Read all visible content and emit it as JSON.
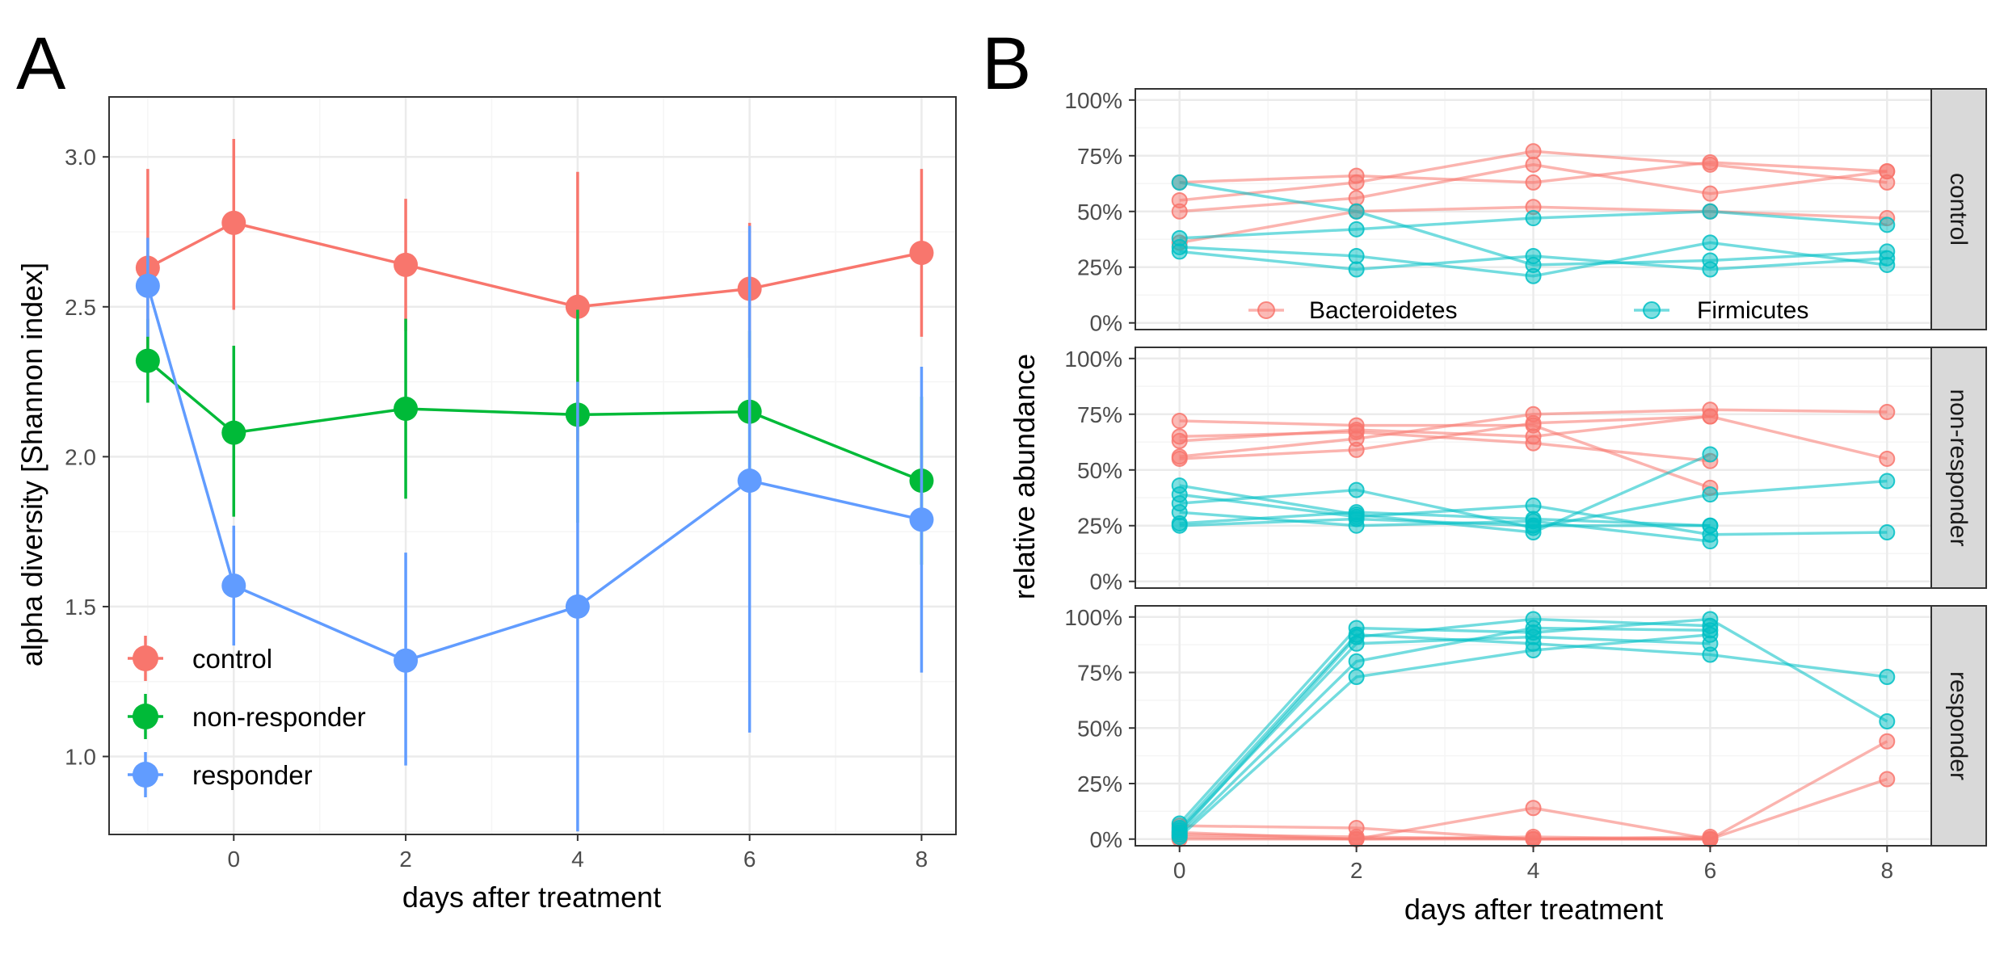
{
  "colors": {
    "control": "#F8766D",
    "non_responder": "#00BA38",
    "responder": "#619CFF",
    "bacteroidetes": "#F8766D",
    "firmicutes": "#00BFC4",
    "grid_major": "#EBEBEB",
    "grid_minor": "#F5F5F5",
    "strip_fill": "#D9D9D9",
    "text": "#000000",
    "tick_text": "#4D4D4D"
  },
  "chart_data": [
    {
      "panel_label": "A",
      "type": "line",
      "xlabel": "days after treatment",
      "ylabel": "alpha diversity [Shannon index]",
      "xlim": [
        -1.45,
        8.4
      ],
      "ylim": [
        0.74,
        3.2
      ],
      "x_ticks": [
        0,
        2,
        4,
        6,
        8
      ],
      "x_tick_labels": [
        "0",
        "2",
        "4",
        "6",
        "8"
      ],
      "y_ticks": [
        1.0,
        1.5,
        2.0,
        2.5,
        3.0
      ],
      "y_tick_labels": [
        "1.0",
        "1.5",
        "2.0",
        "2.5",
        "3.0"
      ],
      "grid": true,
      "legend_position": "bottom-left",
      "x": [
        -1,
        0,
        2,
        4,
        6,
        8
      ],
      "series": [
        {
          "key": "control",
          "name": "control",
          "values": [
            2.63,
            2.78,
            2.64,
            2.5,
            2.56,
            2.68
          ],
          "lower": [
            2.28,
            2.49,
            2.42,
            2.05,
            2.33,
            2.4
          ],
          "upper": [
            2.96,
            3.06,
            2.86,
            2.95,
            2.78,
            2.96
          ]
        },
        {
          "key": "non_responder",
          "name": "non-responder",
          "values": [
            2.32,
            2.08,
            2.16,
            2.14,
            2.15,
            1.92
          ],
          "lower": [
            2.18,
            1.8,
            1.86,
            1.78,
            1.88,
            1.64
          ],
          "upper": [
            2.46,
            2.37,
            2.46,
            2.49,
            2.42,
            2.2
          ]
        },
        {
          "key": "responder",
          "name": "responder",
          "values": [
            2.57,
            1.57,
            1.32,
            1.5,
            1.92,
            1.79
          ],
          "lower": [
            2.4,
            1.37,
            0.97,
            0.75,
            1.08,
            1.28
          ],
          "upper": [
            2.73,
            1.77,
            1.68,
            2.25,
            2.77,
            2.3
          ]
        }
      ]
    },
    {
      "panel_label": "B",
      "type": "line",
      "xlabel": "days after treatment",
      "ylabel": "relative abundance",
      "xlim": [
        -0.5,
        8.5
      ],
      "ylim": [
        -0.03,
        1.05
      ],
      "x_ticks": [
        0,
        2,
        4,
        6,
        8
      ],
      "x_tick_labels": [
        "0",
        "2",
        "4",
        "6",
        "8"
      ],
      "y_ticks": [
        0,
        0.25,
        0.5,
        0.75,
        1.0
      ],
      "y_tick_labels": [
        "0%",
        "25%",
        "50%",
        "75%",
        "100%"
      ],
      "grid": true,
      "legend_position": "inside-bottom of top facet",
      "legend": [
        {
          "key": "bacteroidetes",
          "label": "Bacteroidetes"
        },
        {
          "key": "firmicutes",
          "label": "Firmicutes"
        }
      ],
      "facets": [
        {
          "strip": "control",
          "lines": [
            {
              "taxon": "bacteroidetes",
              "x": [
                0,
                2,
                4,
                6,
                8
              ],
              "y": [
                0.63,
                0.66,
                0.63,
                0.72,
                0.68
              ]
            },
            {
              "taxon": "bacteroidetes",
              "x": [
                0,
                2,
                4,
                6,
                8
              ],
              "y": [
                0.55,
                0.63,
                0.77,
                0.71,
                0.63
              ]
            },
            {
              "taxon": "bacteroidetes",
              "x": [
                0,
                2,
                4,
                6,
                8
              ],
              "y": [
                0.5,
                0.56,
                0.71,
                0.58,
                0.68
              ]
            },
            {
              "taxon": "bacteroidetes",
              "x": [
                0,
                2,
                4,
                6,
                8
              ],
              "y": [
                0.36,
                0.5,
                0.52,
                0.5,
                0.47
              ]
            },
            {
              "taxon": "firmicutes",
              "x": [
                0,
                2,
                4,
                6,
                8
              ],
              "y": [
                0.63,
                0.5,
                0.26,
                0.28,
                0.32
              ]
            },
            {
              "taxon": "firmicutes",
              "x": [
                0,
                2,
                4,
                6,
                8
              ],
              "y": [
                0.38,
                0.42,
                0.47,
                0.5,
                0.44
              ]
            },
            {
              "taxon": "firmicutes",
              "x": [
                0,
                2,
                4,
                6,
                8
              ],
              "y": [
                0.34,
                0.3,
                0.21,
                0.36,
                0.26
              ]
            },
            {
              "taxon": "firmicutes",
              "x": [
                0,
                2,
                4,
                6,
                8
              ],
              "y": [
                0.32,
                0.24,
                0.3,
                0.24,
                0.29
              ]
            }
          ]
        },
        {
          "strip": "non-responder",
          "lines": [
            {
              "taxon": "bacteroidetes",
              "x": [
                0,
                2,
                4,
                6
              ],
              "y": [
                0.72,
                0.7,
                0.7,
                0.42
              ]
            },
            {
              "taxon": "bacteroidetes",
              "x": [
                0,
                2,
                4,
                6
              ],
              "y": [
                0.65,
                0.67,
                0.62,
                0.54
              ]
            },
            {
              "taxon": "bacteroidetes",
              "x": [
                0,
                2,
                4,
                6,
                8
              ],
              "y": [
                0.63,
                0.68,
                0.65,
                0.74,
                0.55
              ]
            },
            {
              "taxon": "bacteroidetes",
              "x": [
                0,
                2,
                4,
                6,
                8
              ],
              "y": [
                0.56,
                0.64,
                0.75,
                0.77,
                0.76
              ]
            },
            {
              "taxon": "bacteroidetes",
              "x": [
                0,
                2,
                4,
                6
              ],
              "y": [
                0.55,
                0.59,
                0.71,
                0.74
              ]
            },
            {
              "taxon": "firmicutes",
              "x": [
                0,
                2,
                4,
                6
              ],
              "y": [
                0.43,
                0.3,
                0.22,
                0.57
              ]
            },
            {
              "taxon": "firmicutes",
              "x": [
                0,
                2,
                4,
                6,
                8
              ],
              "y": [
                0.39,
                0.29,
                0.34,
                0.21,
                0.22
              ]
            },
            {
              "taxon": "firmicutes",
              "x": [
                0,
                2,
                4,
                6,
                8
              ],
              "y": [
                0.35,
                0.41,
                0.24,
                0.39,
                0.45
              ]
            },
            {
              "taxon": "firmicutes",
              "x": [
                0,
                2,
                4,
                6
              ],
              "y": [
                0.31,
                0.25,
                0.27,
                0.18
              ]
            },
            {
              "taxon": "firmicutes",
              "x": [
                0,
                2,
                4,
                6
              ],
              "y": [
                0.26,
                0.31,
                0.28,
                0.25
              ]
            },
            {
              "taxon": "firmicutes",
              "x": [
                0,
                2,
                4,
                6
              ],
              "y": [
                0.25,
                0.28,
                0.25,
                0.25
              ]
            }
          ]
        },
        {
          "strip": "responder",
          "lines": [
            {
              "taxon": "bacteroidetes",
              "x": [
                0,
                2,
                4,
                6,
                8
              ],
              "y": [
                0.06,
                0.05,
                0.0,
                0.0,
                0.44
              ]
            },
            {
              "taxon": "bacteroidetes",
              "x": [
                0,
                2,
                4,
                6,
                8
              ],
              "y": [
                0.03,
                0.0,
                0.14,
                0.0,
                0.27
              ]
            },
            {
              "taxon": "bacteroidetes",
              "x": [
                0,
                2,
                4,
                6
              ],
              "y": [
                0.02,
                0.01,
                0.0,
                0.0
              ]
            },
            {
              "taxon": "bacteroidetes",
              "x": [
                0,
                2,
                4,
                6
              ],
              "y": [
                0.01,
                0.0,
                0.01,
                0.0
              ]
            },
            {
              "taxon": "bacteroidetes",
              "x": [
                0,
                2,
                4,
                6
              ],
              "y": [
                0.0,
                0.0,
                0.0,
                0.01
              ]
            },
            {
              "taxon": "firmicutes",
              "x": [
                0,
                2,
                4,
                6,
                8
              ],
              "y": [
                0.07,
                0.95,
                0.93,
                0.99,
                0.53
              ]
            },
            {
              "taxon": "firmicutes",
              "x": [
                0,
                2,
                4,
                6,
                8
              ],
              "y": [
                0.05,
                0.92,
                0.88,
                0.83,
                0.73
              ]
            },
            {
              "taxon": "firmicutes",
              "x": [
                0,
                2,
                4,
                6
              ],
              "y": [
                0.03,
                0.91,
                0.99,
                0.96
              ]
            },
            {
              "taxon": "firmicutes",
              "x": [
                0,
                2,
                4,
                6
              ],
              "y": [
                0.02,
                0.8,
                0.95,
                0.94
              ]
            },
            {
              "taxon": "firmicutes",
              "x": [
                0,
                2,
                4,
                6
              ],
              "y": [
                0.01,
                0.73,
                0.85,
                0.92
              ]
            },
            {
              "taxon": "firmicutes",
              "x": [
                0,
                2,
                4,
                6
              ],
              "y": [
                0.04,
                0.88,
                0.91,
                0.88
              ]
            }
          ]
        }
      ]
    }
  ]
}
